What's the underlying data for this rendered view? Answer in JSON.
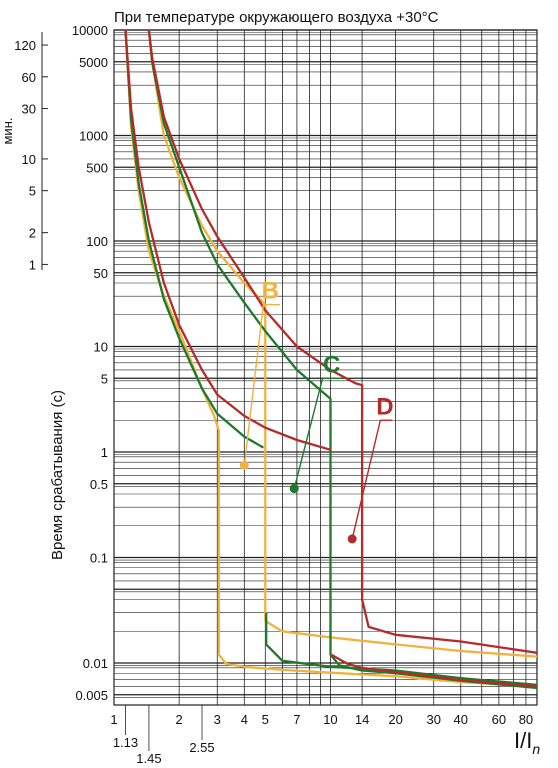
{
  "chart_data": {
    "type": "line",
    "title": "При температуре окружающего воздуха +30°C",
    "xlabel": "I/I",
    "xlabel_sub": "n",
    "ylabel": "Время срабатывания (с)",
    "xscale": "log",
    "yscale": "log",
    "xlim": [
      1,
      90
    ],
    "ylim": [
      0.004,
      10000
    ],
    "x_ticks": [
      {
        "value": 1,
        "label": "1"
      },
      {
        "value": 2,
        "label": "2"
      },
      {
        "value": 3,
        "label": "3"
      },
      {
        "value": 4,
        "label": "4"
      },
      {
        "value": 5,
        "label": "5"
      },
      {
        "value": 7,
        "label": "7"
      },
      {
        "value": 10,
        "label": "10"
      },
      {
        "value": 14,
        "label": "14"
      },
      {
        "value": 20,
        "label": "20"
      },
      {
        "value": 30,
        "label": "30"
      },
      {
        "value": 40,
        "label": "40"
      },
      {
        "value": 60,
        "label": "60"
      },
      {
        "value": 80,
        "label": "80"
      }
    ],
    "x_ticks_below": [
      {
        "value": 1.13,
        "label": "1.13"
      },
      {
        "value": 1.45,
        "label": "1.45"
      },
      {
        "value": 2.55,
        "label": "2.55"
      }
    ],
    "y_ticks": [
      {
        "value": 10000,
        "label": "10000"
      },
      {
        "value": 5000,
        "label": "5000"
      },
      {
        "value": 1000,
        "label": "1000"
      },
      {
        "value": 500,
        "label": "500"
      },
      {
        "value": 100,
        "label": "100"
      },
      {
        "value": 50,
        "label": "50"
      },
      {
        "value": 10,
        "label": "10"
      },
      {
        "value": 5,
        "label": "5"
      },
      {
        "value": 1,
        "label": "1"
      },
      {
        "value": 0.5,
        "label": "0.5"
      },
      {
        "value": 0.1,
        "label": "0.1"
      },
      {
        "value": 0.01,
        "label": "0.01"
      },
      {
        "value": 0.005,
        "label": "0.005"
      }
    ],
    "minutes_axis": {
      "label": "мин.",
      "ticks": [
        {
          "value": 120,
          "label": "120"
        },
        {
          "value": 60,
          "label": "60"
        },
        {
          "value": 30,
          "label": "30"
        },
        {
          "value": 10,
          "label": "10"
        },
        {
          "value": 5,
          "label": "5"
        },
        {
          "value": 2,
          "label": "2"
        },
        {
          "value": 1,
          "label": "1"
        }
      ]
    },
    "grid": true,
    "series": [
      {
        "name": "B",
        "color": "#f0b23c",
        "label_at": [
          4.0,
          0.75
        ],
        "leader_to": [
          4.9,
          25
        ],
        "text_at": [
          5.6,
          25
        ],
        "lower": [
          [
            1.13,
            10000
          ],
          [
            1.2,
            1200
          ],
          [
            1.3,
            300
          ],
          [
            1.45,
            80
          ],
          [
            1.7,
            30
          ],
          [
            2.0,
            14
          ],
          [
            2.55,
            4
          ],
          [
            2.9,
            2.2
          ],
          [
            3.05,
            1.6
          ],
          [
            3.05,
            0.012
          ],
          [
            3.3,
            0.0098
          ],
          [
            4,
            0.0092
          ],
          [
            6,
            0.0086
          ],
          [
            10,
            0.0081
          ],
          [
            20,
            0.0075
          ],
          [
            40,
            0.0066
          ],
          [
            90,
            0.006
          ]
        ],
        "upper": [
          [
            1.45,
            10000
          ],
          [
            1.5,
            5000
          ],
          [
            1.7,
            1000
          ],
          [
            2,
            400
          ],
          [
            2.55,
            140
          ],
          [
            3,
            80
          ],
          [
            4,
            40
          ],
          [
            5,
            25
          ],
          [
            5,
            0.025
          ],
          [
            6,
            0.02
          ],
          [
            10,
            0.0175
          ],
          [
            20,
            0.015
          ],
          [
            40,
            0.013
          ],
          [
            90,
            0.0115
          ]
        ]
      },
      {
        "name": "C",
        "color": "#1e7a2b",
        "label_at": [
          6.8,
          0.45
        ],
        "leader_to": [
          9.2,
          5
        ],
        "text_at": [
          11,
          5
        ],
        "lower": [
          [
            1.13,
            10000
          ],
          [
            1.2,
            1400
          ],
          [
            1.3,
            350
          ],
          [
            1.45,
            100
          ],
          [
            1.7,
            28
          ],
          [
            2,
            12
          ],
          [
            2.55,
            4
          ],
          [
            3,
            2.3
          ],
          [
            4,
            1.4
          ],
          [
            4.9,
            1.1
          ]
        ],
        "lower_tail": [
          [
            5.05,
            0.03
          ],
          [
            5.05,
            0.015
          ],
          [
            6,
            0.0105
          ],
          [
            10,
            0.0092
          ],
          [
            20,
            0.0085
          ],
          [
            40,
            0.0072
          ],
          [
            90,
            0.0062
          ]
        ],
        "upper": [
          [
            1.45,
            10000
          ],
          [
            1.5,
            5000
          ],
          [
            1.7,
            1300
          ],
          [
            2,
            500
          ],
          [
            2.55,
            120
          ],
          [
            3,
            60
          ],
          [
            4,
            26
          ],
          [
            5,
            14
          ],
          [
            7,
            6
          ],
          [
            9.5,
            3.5
          ],
          [
            10,
            3.2
          ],
          [
            10,
            0.012
          ],
          [
            11,
            0.0095
          ],
          [
            14,
            0.0085
          ],
          [
            20,
            0.008
          ],
          [
            40,
            0.0068
          ],
          [
            90,
            0.0058
          ]
        ]
      },
      {
        "name": "D",
        "color": "#b52a2a",
        "label_at": [
          12.6,
          0.15
        ],
        "leader_to": [
          17,
          2
        ],
        "text_at": [
          18.5,
          2
        ],
        "lower": [
          [
            1.13,
            10000
          ],
          [
            1.2,
            1800
          ],
          [
            1.3,
            500
          ],
          [
            1.45,
            150
          ],
          [
            1.7,
            40
          ],
          [
            2,
            16
          ],
          [
            2.55,
            6
          ],
          [
            3,
            3.5
          ],
          [
            4,
            2.2
          ],
          [
            5,
            1.7
          ],
          [
            7,
            1.3
          ],
          [
            10,
            1.05
          ]
        ],
        "lower_tail": [
          [
            10.1,
            0.012
          ],
          [
            12,
            0.0098
          ],
          [
            14,
            0.009
          ],
          [
            20,
            0.0082
          ],
          [
            40,
            0.0069
          ],
          [
            90,
            0.006
          ]
        ],
        "upper": [
          [
            1.45,
            10000
          ],
          [
            1.5,
            5500
          ],
          [
            1.7,
            1500
          ],
          [
            2,
            600
          ],
          [
            2.55,
            200
          ],
          [
            3,
            110
          ],
          [
            4,
            45
          ],
          [
            5,
            22
          ],
          [
            7,
            10
          ],
          [
            10,
            6
          ],
          [
            13,
            4.5
          ],
          [
            14,
            4.3
          ],
          [
            14,
            0.04
          ],
          [
            15,
            0.022
          ],
          [
            20,
            0.0185
          ],
          [
            40,
            0.016
          ],
          [
            90,
            0.0125
          ]
        ]
      }
    ]
  }
}
